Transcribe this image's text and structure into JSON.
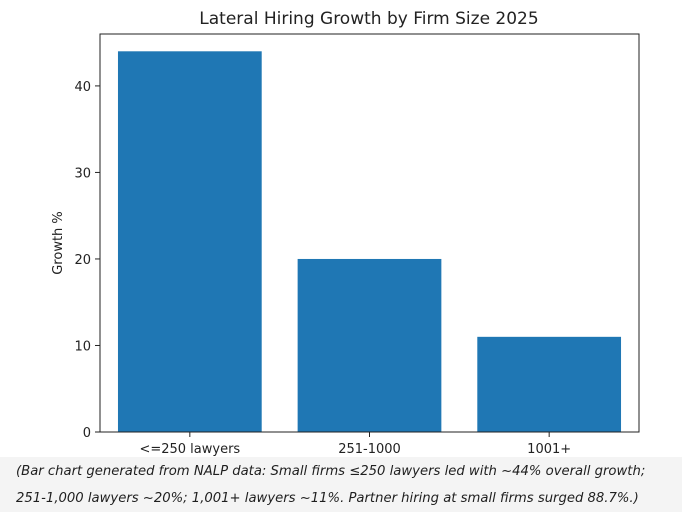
{
  "chart_data": {
    "type": "bar",
    "title": "Lateral Hiring Growth by Firm Size 2025",
    "xlabel": "",
    "ylabel": "Growth %",
    "categories": [
      "<=250 lawyers",
      "251-1000",
      "1001+"
    ],
    "values": [
      44,
      20,
      11
    ],
    "ylim": [
      0,
      46
    ],
    "yticks": [
      0,
      10,
      20,
      30,
      40
    ],
    "bar_color": "#1f77b4",
    "grid": false,
    "legend": "none"
  },
  "caption": "(Bar chart generated from NALP data: Small firms ≤250 lawyers led with ~44% overall growth; 251-1,000 lawyers ~20%; 1,001+ lawyers ~11%. Partner hiring at small firms surged 88.7%.)"
}
